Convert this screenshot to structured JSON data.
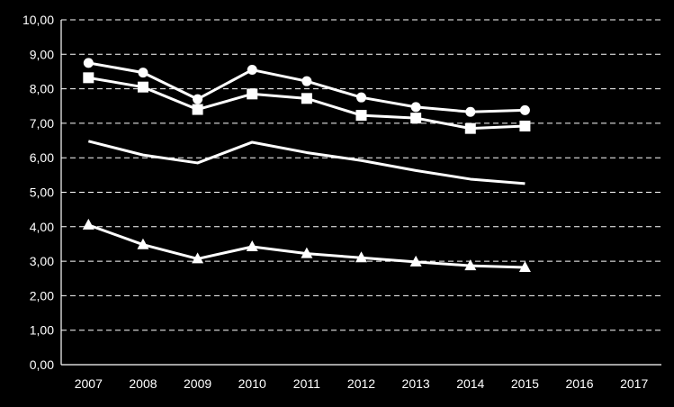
{
  "chart_data": {
    "type": "line",
    "title": "",
    "xlabel": "",
    "ylabel": "",
    "ylim": [
      0,
      10
    ],
    "yticks": [
      "0,00",
      "1,00",
      "2,00",
      "3,00",
      "4,00",
      "5,00",
      "6,00",
      "7,00",
      "8,00",
      "9,00",
      "10,00"
    ],
    "categories": [
      "2007",
      "2008",
      "2009",
      "2010",
      "2011",
      "2012",
      "2013",
      "2014",
      "2015",
      "2016",
      "2017"
    ],
    "grid": true,
    "legend": "none",
    "colors": {
      "background": "#000000",
      "foreground": "#ffffff"
    },
    "series": [
      {
        "marker": "circle",
        "values": [
          8.75,
          8.47,
          7.7,
          8.55,
          8.22,
          7.75,
          7.47,
          7.33,
          7.38,
          null,
          null
        ]
      },
      {
        "marker": "square",
        "values": [
          8.32,
          8.05,
          7.4,
          7.85,
          7.72,
          7.23,
          7.15,
          6.85,
          6.92,
          null,
          null
        ]
      },
      {
        "marker": "none",
        "values": [
          6.48,
          6.08,
          5.85,
          6.45,
          6.15,
          5.92,
          5.63,
          5.38,
          5.25,
          null,
          null
        ]
      },
      {
        "marker": "triangle",
        "values": [
          4.05,
          3.48,
          3.07,
          3.42,
          3.22,
          3.1,
          2.98,
          2.87,
          2.82,
          null,
          null
        ]
      }
    ]
  }
}
